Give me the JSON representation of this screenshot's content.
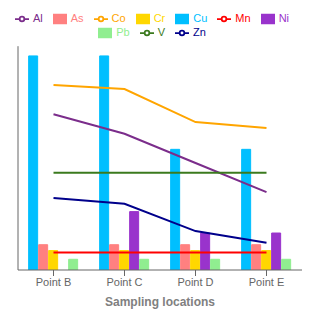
{
  "chart_data": {
    "type": "bar",
    "xlabel": "Sampling locations",
    "categories": [
      "Point B",
      "Point C",
      "Point D",
      "Point E"
    ],
    "series": [
      {
        "name": "Cu",
        "type": "bar",
        "color": "#00BFFF",
        "values": [
          1.1,
          1.1,
          0.62,
          0.62
        ]
      },
      {
        "name": "As",
        "type": "bar",
        "color": "#FF8080",
        "values": [
          0.13,
          0.13,
          0.13,
          0.13
        ]
      },
      {
        "name": "Cr",
        "type": "bar",
        "color": "#FFD700",
        "values": [
          0.1,
          0.1,
          0.1,
          0.1
        ]
      },
      {
        "name": "Ni",
        "type": "bar",
        "color": "#9933CC",
        "values": [
          null,
          0.3,
          0.19,
          0.19
        ]
      },
      {
        "name": "Pb",
        "type": "bar",
        "color": "#90EE90",
        "values": [
          0.055,
          0.055,
          0.055,
          0.055
        ]
      },
      {
        "name": "Co",
        "type": "line",
        "color": "#FFA500",
        "values": [
          0.95,
          0.93,
          0.76,
          0.73
        ]
      },
      {
        "name": "Al",
        "type": "line",
        "color": "#7B2D8B",
        "values": [
          0.8,
          0.7,
          0.55,
          0.4
        ]
      },
      {
        "name": "V",
        "type": "line",
        "color": "#3B7A1E",
        "values": [
          0.5,
          0.5,
          0.5,
          0.5
        ]
      },
      {
        "name": "Zn",
        "type": "line",
        "color": "#00008B",
        "values": [
          0.37,
          0.34,
          0.2,
          0.14
        ]
      },
      {
        "name": "Mn",
        "type": "line",
        "color": "#FF0000",
        "values": [
          0.09,
          0.09,
          0.09,
          0.09
        ]
      }
    ],
    "ylim": [
      0.0,
      1.15
    ],
    "tick_labels": "x",
    "grid": false,
    "legend": "top"
  }
}
